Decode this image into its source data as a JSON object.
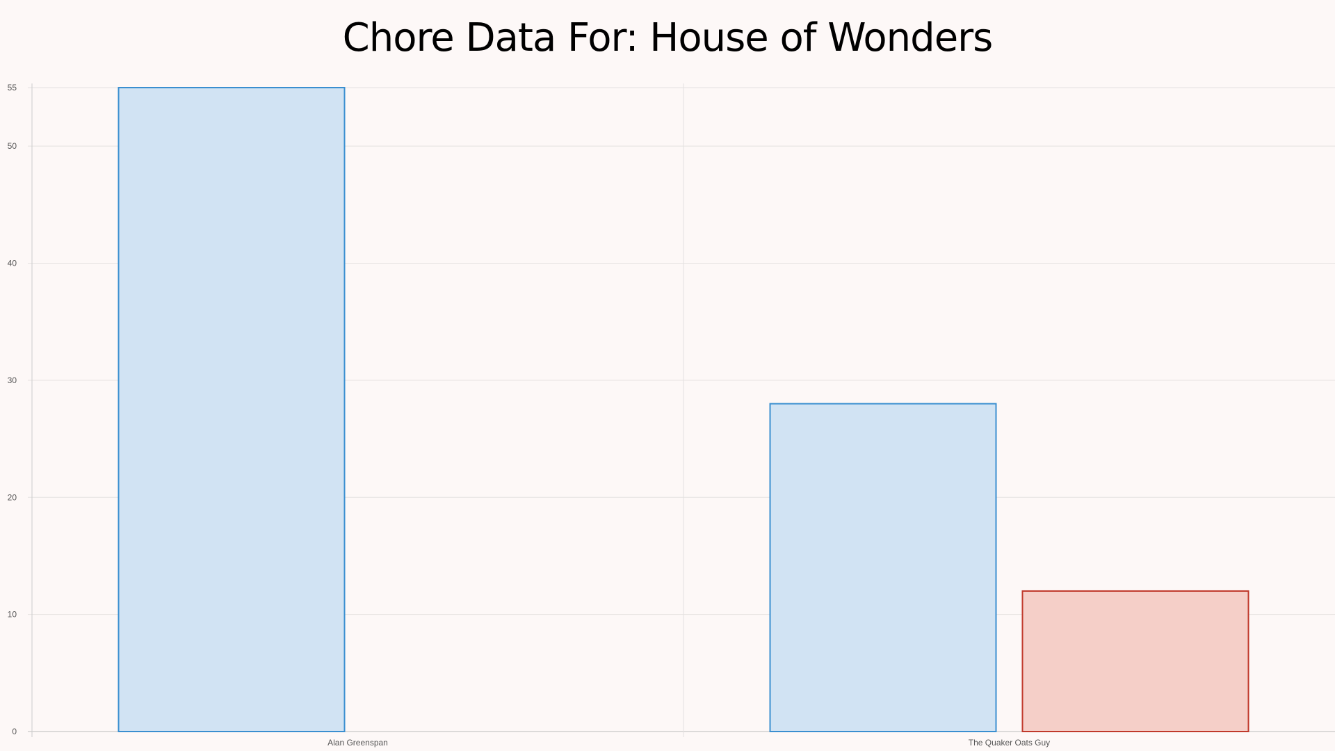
{
  "chart_data": {
    "type": "bar",
    "title": "Chore Data For: House of Wonders",
    "categories": [
      "Alan Greenspan",
      "The Quaker Oats Guy"
    ],
    "series": [
      {
        "values": [
          55,
          28
        ],
        "fill": "#d1e3f3",
        "stroke": "#3a8fd0"
      },
      {
        "values": [
          0,
          12
        ],
        "fill": "#f5cfc8",
        "stroke": "#c0392b"
      }
    ],
    "y_ticks": [
      0,
      10,
      20,
      30,
      40,
      50,
      55
    ],
    "ylim": [
      0,
      55
    ],
    "grid": true,
    "legend": "none"
  }
}
